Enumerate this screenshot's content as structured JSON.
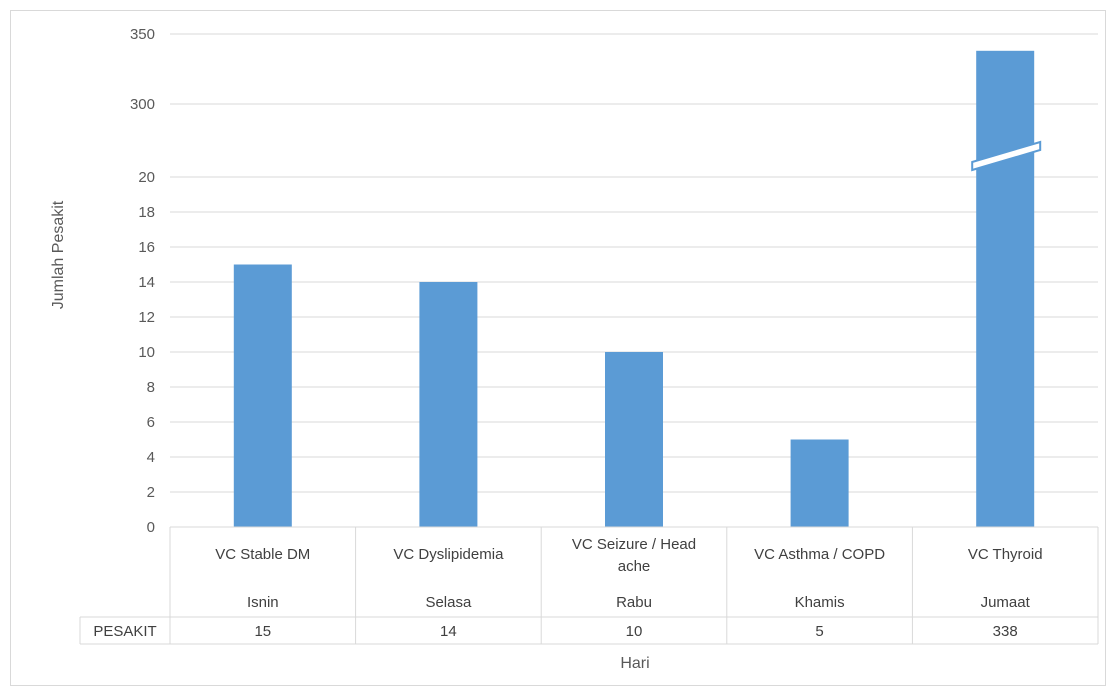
{
  "chart_data": {
    "type": "bar",
    "categories": [
      {
        "topic": "VC Stable DM",
        "day": "Isnin"
      },
      {
        "topic": "VC Dyslipidemia",
        "day": "Selasa"
      },
      {
        "topic": "VC Seizure / Head ache",
        "day": "Rabu"
      },
      {
        "topic": "VC Asthma / COPD",
        "day": "Khamis"
      },
      {
        "topic": "VC Thyroid",
        "day": "Jumaat"
      }
    ],
    "series": [
      {
        "name": "PESAKIT",
        "values": [
          15,
          14,
          10,
          5,
          338
        ],
        "color": "#5b9bd5"
      }
    ],
    "xlabel": "Hari",
    "ylabel": "Jumlah Pesakit",
    "y_ticks_lower": [
      "0",
      "2",
      "4",
      "6",
      "8",
      "10",
      "12",
      "14",
      "16",
      "18",
      "20"
    ],
    "y_ticks_upper": [
      "300",
      "350"
    ],
    "ylim_lower": [
      0,
      20
    ],
    "ylim_upper": [
      300,
      350
    ],
    "broken_axis": true,
    "grid": true,
    "data_table": true
  }
}
